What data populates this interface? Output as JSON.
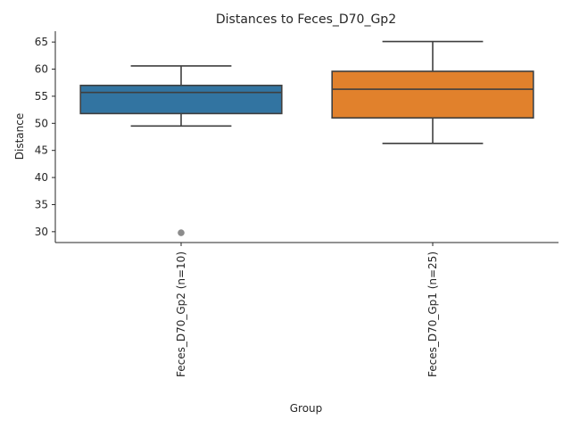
{
  "chart_data": {
    "type": "box",
    "title": "Distances to Feces_D70_Gp2",
    "xlabel": "Group",
    "ylabel": "Distance",
    "ylim": [
      28,
      67
    ],
    "yticks": [
      30,
      35,
      40,
      45,
      50,
      55,
      60,
      65
    ],
    "grid": false,
    "categories": [
      "Feces_D70_Gp2 (n=10)",
      "Feces_D70_Gp1 (n=25)"
    ],
    "boxes": [
      {
        "category": "Feces_D70_Gp2 (n=10)",
        "whisker_low": 49.5,
        "q1": 51.8,
        "median": 55.7,
        "q3": 57.0,
        "whisker_high": 60.6,
        "outliers": [
          29.8
        ],
        "color": "#3274a1"
      },
      {
        "category": "Feces_D70_Gp1 (n=25)",
        "whisker_low": 46.3,
        "q1": 51.0,
        "median": 56.3,
        "q3": 59.6,
        "whisker_high": 65.1,
        "outliers": [],
        "color": "#e1812c"
      }
    ]
  }
}
